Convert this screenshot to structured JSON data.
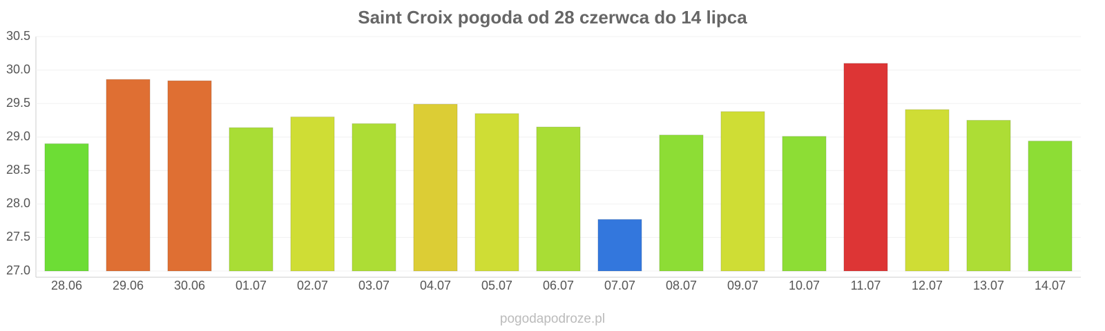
{
  "chart_data": {
    "type": "bar",
    "title": "Saint Croix pogoda od 28 czerwca do 14 lipca",
    "categories": [
      "28.06",
      "29.06",
      "30.06",
      "01.07",
      "02.07",
      "03.07",
      "04.07",
      "05.07",
      "06.07",
      "07.07",
      "08.07",
      "09.07",
      "10.07",
      "11.07",
      "12.07",
      "13.07",
      "14.07"
    ],
    "values": [
      28.9,
      29.86,
      29.84,
      29.14,
      29.3,
      29.2,
      29.49,
      29.35,
      29.15,
      27.77,
      29.03,
      29.38,
      29.01,
      30.1,
      29.41,
      29.25,
      28.94
    ],
    "colors": [
      "#6ddd35",
      "#df6f33",
      "#df6f33",
      "#a9dd35",
      "#cfdd35",
      "#addd35",
      "#dccd35",
      "#cfdd35",
      "#a9dd35",
      "#3377dd",
      "#8ddd35",
      "#cfdd35",
      "#8ddd35",
      "#dd3535",
      "#cfdd35",
      "#addd35",
      "#8ddd35"
    ],
    "ylim": [
      27,
      30.5
    ],
    "yticks": [
      {
        "value": 27,
        "label": "27.0"
      },
      27.5,
      {
        "value": 28,
        "label": "28.0"
      },
      28.5,
      {
        "value": 29,
        "label": "29.0"
      },
      29.5,
      {
        "value": 30,
        "label": "30.0"
      },
      30.5
    ],
    "grid": true,
    "source": "pogodapodroze.pl"
  }
}
